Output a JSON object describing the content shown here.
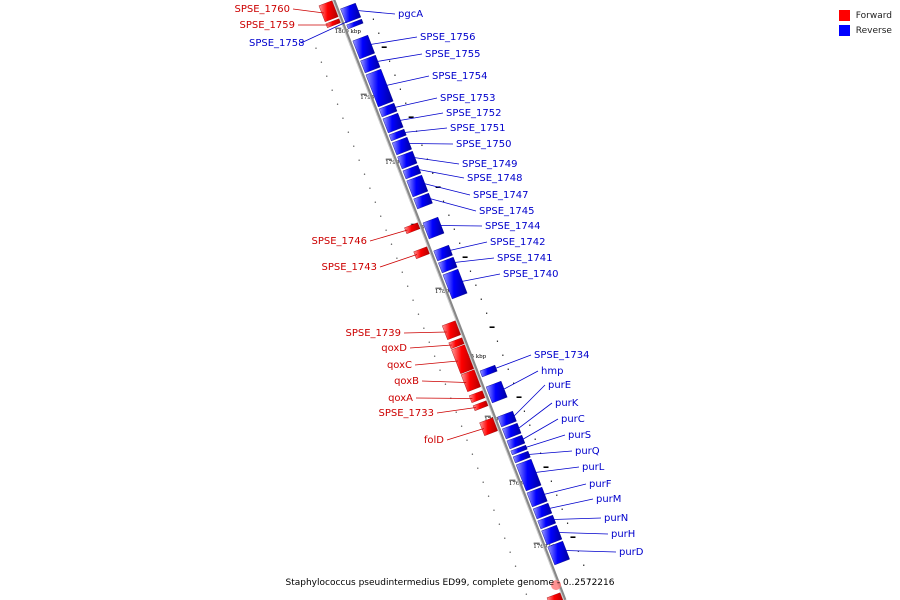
{
  "legend": {
    "items": [
      {
        "label": "Forward",
        "color": "#ff0000"
      },
      {
        "label": "Reverse",
        "color": "#0000ff"
      }
    ]
  },
  "caption": "Staphylococcus pseudintermedius ED99, complete genome - 0..2572216",
  "colors": {
    "forward": "#ff0000",
    "reverse": "#0000ff",
    "backbone": "#888888"
  },
  "tick_labels": [
    "1800 kbp",
    "1795 kbp",
    "1790 kbp",
    "1785 kbp",
    "1780 kbp",
    "1775 kbp",
    "1770 kbp",
    "1765 kbp",
    "1760 kbp"
  ],
  "forward_genes": [
    "SPSE_1760",
    "SPSE_1759",
    "SPSE_1746",
    "SPSE_1743",
    "SPSE_1739",
    "qoxD",
    "qoxC",
    "qoxB",
    "qoxA",
    "SPSE_1733",
    "folD"
  ],
  "reverse_genes": [
    "pgcA",
    "SPSE_1758",
    "SPSE_1756",
    "SPSE_1755",
    "SPSE_1754",
    "SPSE_1753",
    "SPSE_1752",
    "SPSE_1751",
    "SPSE_1750",
    "SPSE_1749",
    "SPSE_1748",
    "SPSE_1747",
    "SPSE_1745",
    "SPSE_1744",
    "SPSE_1742",
    "SPSE_1741",
    "SPSE_1740",
    "SPSE_1734",
    "hmp",
    "purE",
    "purK",
    "purC",
    "purS",
    "purQ",
    "purL",
    "purF",
    "purM",
    "purN",
    "purH",
    "purD"
  ]
}
